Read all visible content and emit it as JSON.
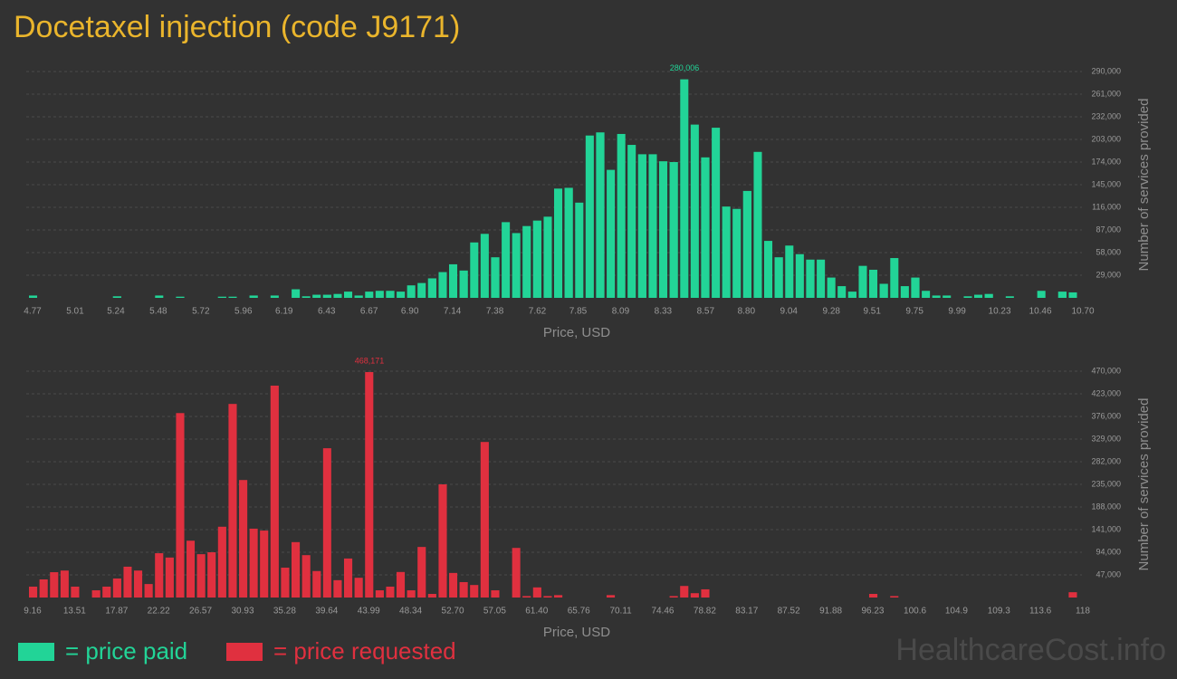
{
  "title": "Docetaxel injection (code J9171)",
  "watermark": "HealthcareCost.info",
  "chart_data": [
    {
      "type": "histogram",
      "color": "#22d497",
      "legend_label": "= price paid",
      "xlabel": "Price, USD",
      "ylabel": "Number of services provided",
      "xlim": [
        4.77,
        10.7
      ],
      "ylim": [
        0,
        290000
      ],
      "grid": true,
      "xticks": [
        4.77,
        5.01,
        5.24,
        5.48,
        5.72,
        5.96,
        6.19,
        6.43,
        6.67,
        {
          "value": 6.9,
          "label": "6.90"
        },
        7.14,
        7.38,
        7.62,
        7.85,
        8.09,
        8.33,
        8.57,
        {
          "value": 8.8,
          "label": "8.80"
        },
        9.04,
        9.28,
        9.51,
        9.75,
        9.99,
        10.23,
        10.46,
        {
          "value": 10.7,
          "label": "10.70"
        }
      ],
      "yticks": [
        {
          "value": 29000,
          "label": "29,000"
        },
        {
          "value": 58000,
          "label": "58,000"
        },
        {
          "value": 87000,
          "label": "87,000"
        },
        {
          "value": 116000,
          "label": "116,000"
        },
        {
          "value": 145000,
          "label": "145,000"
        },
        {
          "value": 174000,
          "label": "174,000"
        },
        {
          "value": 203000,
          "label": "203,000"
        },
        {
          "value": 232000,
          "label": "232,000"
        },
        {
          "value": 261000,
          "label": "261,000"
        },
        {
          "value": 290000,
          "label": "290,000"
        }
      ],
      "bins": [
        4.77,
        4.829,
        4.889,
        4.948,
        5.007,
        5.067,
        5.126,
        5.185,
        5.244,
        5.304,
        5.363,
        5.422,
        5.482,
        5.541,
        5.6,
        5.66,
        5.719,
        5.778,
        5.837,
        5.897,
        5.956,
        6.015,
        6.075,
        6.134,
        6.193,
        6.253,
        6.312,
        6.371,
        6.43,
        6.49,
        6.549,
        6.608,
        6.668,
        6.727,
        6.786,
        6.846,
        6.905,
        6.964,
        7.023,
        7.083,
        7.142,
        7.201,
        7.261,
        7.32,
        7.379,
        7.439,
        7.498,
        7.557,
        7.616,
        7.676,
        7.735,
        7.794,
        7.854,
        7.913,
        7.972,
        8.032,
        8.091,
        8.15,
        8.209,
        8.269,
        8.328,
        8.387,
        8.447,
        8.506,
        8.565,
        8.625,
        8.684,
        8.743,
        8.802,
        8.862,
        8.921,
        8.98,
        9.04,
        9.099,
        9.158,
        9.218,
        9.277,
        9.336,
        9.395,
        9.455,
        9.514,
        9.573,
        9.633,
        9.692,
        9.751,
        9.811,
        9.87,
        9.929,
        9.988,
        10.048,
        10.107,
        10.166,
        10.226,
        10.285,
        10.344,
        10.404,
        10.463,
        10.522,
        10.581,
        10.641,
        10.7
      ],
      "values": [
        3000,
        0,
        0,
        0,
        0,
        0,
        0,
        0,
        2000,
        0,
        0,
        0,
        3000,
        0,
        1500,
        0,
        0,
        0,
        1500,
        1500,
        0,
        3000,
        0,
        3000,
        0,
        11000,
        2000,
        4000,
        4000,
        5000,
        8000,
        3000,
        8000,
        9000,
        9000,
        8000,
        16000,
        19000,
        25000,
        33000,
        43000,
        35000,
        71000,
        82000,
        52000,
        97000,
        83000,
        92000,
        99000,
        104000,
        140000,
        141000,
        122000,
        208000,
        212000,
        164000,
        210000,
        196000,
        184000,
        184000,
        175000,
        174000,
        280006,
        222000,
        180000,
        218000,
        117000,
        114000,
        137000,
        187000,
        73000,
        52000,
        67000,
        56000,
        49000,
        49000,
        26000,
        15000,
        8000,
        41000,
        36000,
        18000,
        51000,
        15000,
        26000,
        9000,
        3000,
        3000,
        0,
        2000,
        4000,
        5000,
        0,
        2000,
        0,
        0,
        9000,
        0,
        8000,
        7000
      ],
      "value_labels": [
        null,
        null,
        null,
        null,
        null,
        null,
        null,
        null,
        null,
        null,
        null,
        null,
        null,
        null,
        null,
        null,
        null,
        null,
        null,
        null,
        null,
        null,
        null,
        null,
        null,
        null,
        null,
        null,
        null,
        null,
        null,
        null,
        null,
        null,
        null,
        null,
        null,
        null,
        null,
        null,
        null,
        null,
        null,
        null,
        null,
        null,
        null,
        null,
        null,
        null,
        null,
        null,
        null,
        null,
        null,
        null,
        null,
        null,
        null,
        null,
        null,
        null,
        "280,006",
        null,
        null,
        null,
        null,
        null,
        null,
        null,
        null,
        null,
        null,
        null,
        null,
        null,
        null,
        null,
        null,
        null,
        null,
        null,
        null,
        null,
        null,
        null,
        null,
        null,
        null,
        null,
        null,
        null,
        null,
        null,
        null,
        null,
        null,
        null,
        null,
        null
      ]
    },
    {
      "type": "histogram",
      "color": "#e0303f",
      "legend_label": "= price requested",
      "xlabel": "Price, USD",
      "ylabel": "Number of services provided",
      "xlim": [
        9.16,
        118
      ],
      "ylim": [
        0,
        470000
      ],
      "grid": true,
      "xticks": [
        9.16,
        13.51,
        17.87,
        22.22,
        26.57,
        30.93,
        35.28,
        39.64,
        43.99,
        48.34,
        {
          "value": 52.7,
          "label": "52.70"
        },
        57.05,
        {
          "value": 61.4,
          "label": "61.40"
        },
        65.76,
        70.11,
        74.46,
        78.82,
        83.17,
        87.52,
        91.88,
        96.23,
        100.6,
        104.9,
        109.3,
        113.6,
        118
      ],
      "yticks": [
        {
          "value": 47000,
          "label": "47,000"
        },
        {
          "value": 94000,
          "label": "94,000"
        },
        {
          "value": 141000,
          "label": "141,000"
        },
        {
          "value": 188000,
          "label": "188,000"
        },
        {
          "value": 235000,
          "label": "235,000"
        },
        {
          "value": 282000,
          "label": "282,000"
        },
        {
          "value": 329000,
          "label": "329,000"
        },
        {
          "value": 376000,
          "label": "376,000"
        },
        {
          "value": 423000,
          "label": "423,000"
        },
        {
          "value": 470000,
          "label": "470,000"
        }
      ],
      "bins": [
        9.16,
        10.25,
        11.34,
        12.43,
        13.51,
        14.6,
        15.69,
        16.78,
        17.87,
        18.96,
        20.04,
        21.13,
        22.22,
        23.31,
        24.4,
        25.49,
        26.57,
        27.66,
        28.75,
        29.84,
        30.93,
        32.02,
        33.1,
        34.19,
        35.28,
        36.37,
        37.46,
        38.55,
        39.64,
        40.72,
        41.81,
        42.9,
        43.99,
        45.08,
        46.17,
        47.25,
        48.34,
        49.43,
        50.52,
        51.61,
        52.7,
        53.78,
        54.87,
        55.96,
        57.05,
        58.14,
        59.23,
        60.31,
        61.4,
        62.49,
        63.58,
        64.67,
        65.76,
        66.85,
        67.93,
        69.02,
        70.11,
        71.2,
        72.29,
        73.38,
        74.46,
        75.55,
        76.64,
        77.73,
        78.82,
        79.91,
        80.99,
        82.08,
        83.17,
        84.26,
        85.35,
        86.44,
        87.52,
        88.61,
        89.7,
        90.79,
        91.88,
        92.97,
        94.06,
        95.14,
        96.23,
        97.32,
        98.41,
        99.5,
        100.59,
        101.67,
        102.76,
        103.85,
        104.94,
        106.03,
        107.12,
        108.2,
        109.29,
        110.38,
        111.47,
        112.56,
        113.64,
        114.73,
        115.82,
        116.91,
        118.0
      ],
      "values": [
        22600,
        37600,
        52600,
        56000,
        22600,
        0,
        15000,
        22600,
        39500,
        64000,
        56000,
        28000,
        92000,
        83000,
        383000,
        118000,
        90000,
        94000,
        147000,
        402000,
        244000,
        143000,
        139000,
        440000,
        62000,
        115000,
        88000,
        55000,
        310000,
        36000,
        81000,
        41000,
        468171,
        15000,
        22600,
        53000,
        15000,
        105000,
        7500,
        235000,
        51000,
        32000,
        26000,
        323000,
        15000,
        0,
        103000,
        3000,
        21000,
        3000,
        5000,
        0,
        0,
        0,
        0,
        5000,
        0,
        0,
        0,
        0,
        0,
        3000,
        24000,
        9000,
        17000,
        0,
        0,
        0,
        0,
        0,
        0,
        0,
        0,
        0,
        0,
        0,
        0,
        0,
        0,
        0,
        7500,
        0,
        3000,
        0,
        0,
        0,
        0,
        0,
        0,
        0,
        0,
        0,
        0,
        0,
        0,
        0,
        0,
        0,
        0,
        11000
      ],
      "value_labels": [
        null,
        null,
        null,
        null,
        null,
        null,
        null,
        null,
        null,
        null,
        null,
        null,
        null,
        null,
        null,
        null,
        null,
        null,
        null,
        null,
        null,
        null,
        null,
        null,
        null,
        null,
        null,
        null,
        null,
        null,
        null,
        null,
        "468,171",
        null,
        null,
        null,
        null,
        null,
        null,
        null,
        null,
        null,
        null,
        null,
        null,
        null,
        null,
        null,
        null,
        null,
        null,
        null,
        null,
        null,
        null,
        null,
        null,
        null,
        null,
        null,
        null,
        null,
        null,
        null,
        null,
        null,
        null,
        null,
        null,
        null,
        null,
        null,
        null,
        null,
        null,
        null,
        null,
        null,
        null,
        null,
        null,
        null,
        null,
        null,
        null,
        null,
        null,
        null,
        null,
        null,
        null,
        null,
        null,
        null,
        null,
        null,
        null,
        null,
        null,
        null
      ]
    }
  ]
}
